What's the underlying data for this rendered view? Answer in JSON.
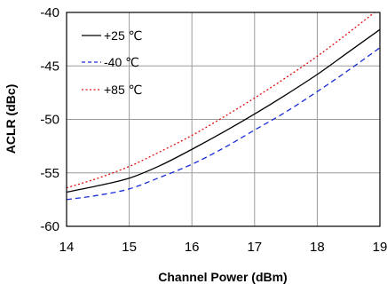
{
  "chart_data": {
    "type": "line",
    "title": "",
    "xlabel": "Channel Power (dBm)",
    "ylabel": "ACLR (dBc)",
    "xlim": [
      14,
      19
    ],
    "ylim": [
      -60,
      -40
    ],
    "x_ticks": [
      "14",
      "15",
      "16",
      "17",
      "18",
      "19"
    ],
    "y_ticks": [
      "-40",
      "-45",
      "-50",
      "-55",
      "-60"
    ],
    "grid": true,
    "legend_position": "top-left",
    "series": [
      {
        "name": "+25 ℃",
        "color": "#000000",
        "style": "solid",
        "x": [
          14,
          14.5,
          15,
          15.5,
          16,
          16.5,
          17,
          17.5,
          18,
          18.5,
          19
        ],
        "y": [
          -56.8,
          -56.2,
          -55.5,
          -54.3,
          -52.8,
          -51.2,
          -49.5,
          -47.7,
          -45.8,
          -43.7,
          -41.6
        ]
      },
      {
        "name": "-40 ℃",
        "color": "#1a2fd6",
        "style": "dashed",
        "x": [
          14,
          14.5,
          15,
          15.5,
          16,
          16.5,
          17,
          17.5,
          18,
          18.5,
          19
        ],
        "y": [
          -57.5,
          -57.1,
          -56.5,
          -55.4,
          -54.2,
          -52.7,
          -51.0,
          -49.3,
          -47.4,
          -45.4,
          -43.3
        ]
      },
      {
        "name": "+85 ℃",
        "color": "#e01010",
        "style": "dotted",
        "x": [
          14,
          14.5,
          15,
          15.5,
          16,
          16.5,
          17,
          17.5,
          18,
          18.5,
          19
        ],
        "y": [
          -56.4,
          -55.5,
          -54.4,
          -53.0,
          -51.5,
          -49.8,
          -48.0,
          -46.1,
          -44.1,
          -41.9,
          -39.6
        ]
      }
    ]
  }
}
